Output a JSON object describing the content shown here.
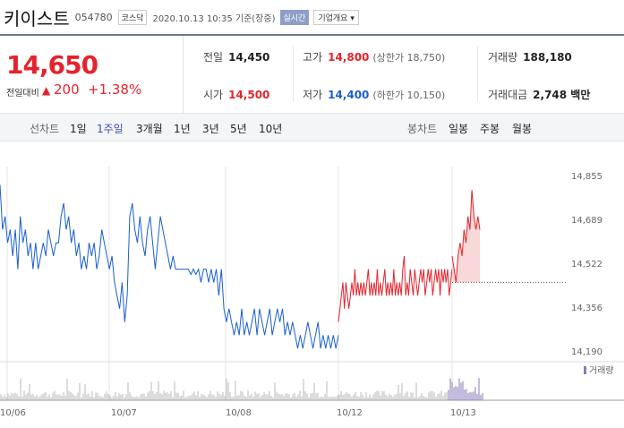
{
  "header": {
    "name": "키이스트",
    "code": "054780",
    "market": "코스닥",
    "timestamp": "2020.10.13 10:35  기준(장중)",
    "realtime": "실시간",
    "company_info": "기업개요 ▾"
  },
  "price": {
    "current": "14,650",
    "change_label": "전일대비",
    "change_arrow": "▲",
    "change_value": "200",
    "change_rate": "+1.38%"
  },
  "stats": {
    "prev_label": "전일",
    "prev_value": "14,450",
    "high_label": "고가",
    "high_value": "14,800",
    "upper_limit": "(상한가 18,750)",
    "volume_label": "거래량",
    "volume_value": "188,180",
    "open_label": "시가",
    "open_value": "14,500",
    "low_label": "저가",
    "low_value": "14,400",
    "lower_limit": "(하한가 10,150)",
    "amount_label": "거래대금",
    "amount_value": "2,748 백만"
  },
  "tabs": {
    "line_label": "선차트",
    "line_tabs": [
      "1일",
      "1주일",
      "3개월",
      "1년",
      "3년",
      "5년",
      "10년"
    ],
    "active": "1주일",
    "candle_label": "봉차트",
    "candle_tabs": [
      "일봉",
      "주봉",
      "월봉"
    ]
  },
  "colors": {
    "up": "#e4232c",
    "down": "#1a5fcf",
    "accent": "#3a4fa8"
  },
  "chart_data": {
    "type": "line",
    "y_ticks": [
      "14,855",
      "14,689",
      "14,522",
      "14,356",
      "14,190"
    ],
    "ylim": [
      14190,
      14855
    ],
    "x_ticks": [
      "10/06",
      "10/07",
      "10/08",
      "10/12",
      "10/13"
    ],
    "reference_price": 14450,
    "volume_legend": "거래량",
    "series": [
      {
        "values": [
          14820,
          14650,
          14700,
          14600,
          14650,
          14550,
          14650,
          14500,
          14700,
          14600,
          14650,
          14550,
          14600,
          14500,
          14600,
          14500,
          14550,
          14600,
          14550,
          14650,
          14600,
          14550,
          14600,
          14600,
          14700,
          14750,
          14650,
          14700,
          14600,
          14650,
          14550,
          14600,
          14500,
          14550,
          14500,
          14600,
          14550,
          14600,
          14500,
          14550,
          14650,
          14600,
          14550,
          14500,
          14550,
          14450,
          14400,
          14350,
          14450,
          14300,
          14400,
          14700,
          14750,
          14650,
          14600,
          14700,
          14600,
          14550,
          14650,
          14700,
          14600,
          14500,
          14600,
          14700,
          14650,
          14600,
          14550,
          14500,
          14550,
          14500,
          14500,
          14500,
          14500,
          14500,
          14500,
          14480,
          14500,
          14480,
          14500,
          14450,
          14500,
          14500,
          14450,
          14500,
          14450,
          14500,
          14400,
          14500,
          14350,
          14300,
          14350,
          14300,
          14250,
          14300,
          14250,
          14350,
          14250,
          14300,
          14250,
          14300,
          14350,
          14250,
          14350,
          14300,
          14250,
          14300,
          14350,
          14250,
          14300,
          14350,
          14300,
          14350,
          14250,
          14300,
          14250,
          14300,
          14250,
          14200,
          14250,
          14200,
          14250,
          14300,
          14250,
          14200,
          14250,
          14300,
          14200,
          14250,
          14200,
          14250,
          14200,
          14250,
          14200,
          14250
        ]
      },
      {
        "values": [
          14300,
          14350,
          14400,
          14450,
          14350,
          14450,
          14400,
          14350,
          14400,
          14450,
          14400,
          14500,
          14400,
          14450,
          14400,
          14450,
          14400,
          14450,
          14400,
          14450,
          14500,
          14400,
          14450,
          14400,
          14450,
          14400,
          14500,
          14400,
          14450,
          14400,
          14450,
          14500,
          14400,
          14450,
          14400,
          14450,
          14400,
          14500,
          14400,
          14450,
          14400,
          14450,
          14400,
          14500,
          14550,
          14400,
          14450,
          14400,
          14500,
          14450,
          14400,
          14500,
          14450,
          14400,
          14450,
          14500,
          14450,
          14500,
          14400,
          14450,
          14500,
          14450,
          14500,
          14400,
          14450,
          14500,
          14450,
          14500,
          14400,
          14500,
          14450,
          14500,
          14450,
          14500,
          14400,
          14450,
          14500
        ]
      },
      {
        "values": [
          14550,
          14500,
          14450,
          14550,
          14600,
          14550,
          14650,
          14600,
          14700,
          14650,
          14800,
          14700,
          14650,
          14700,
          14650
        ]
      }
    ]
  }
}
